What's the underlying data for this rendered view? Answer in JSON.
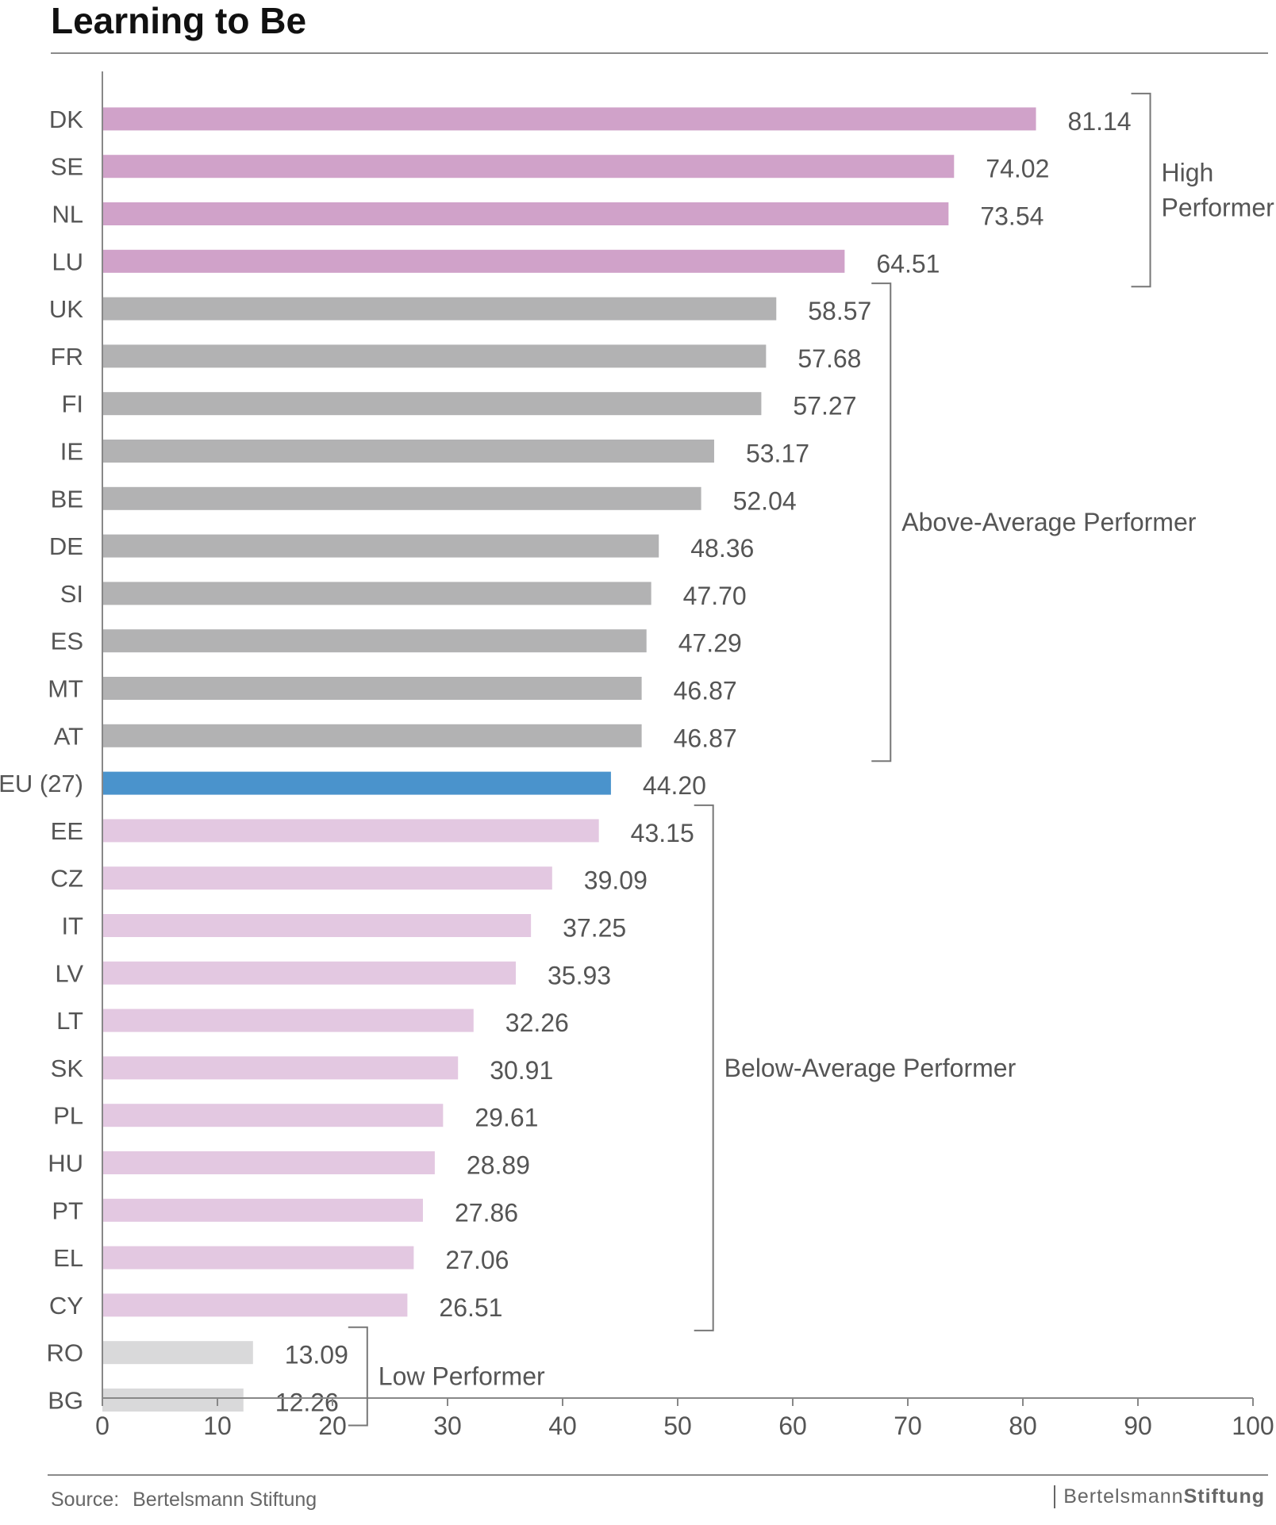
{
  "title": "Learning to Be",
  "source": {
    "label": "Source:",
    "text": "Bertelsmann Stiftung"
  },
  "brand": {
    "part1": "Bertelsmann",
    "part2": "Stiftung"
  },
  "colors": {
    "high": "#d0a2c9",
    "above": "#b2b2b3",
    "eu": "#4a93cc",
    "below": "#e3c8e1",
    "low": "#d9d9da"
  },
  "chart_data": {
    "type": "bar",
    "orientation": "horizontal",
    "categories": [
      "DK",
      "SE",
      "NL",
      "LU",
      "UK",
      "FR",
      "FI",
      "IE",
      "BE",
      "DE",
      "SI",
      "ES",
      "MT",
      "AT",
      "EU (27)",
      "EE",
      "CZ",
      "IT",
      "LV",
      "LT",
      "SK",
      "PL",
      "HU",
      "PT",
      "EL",
      "CY",
      "RO",
      "BG"
    ],
    "values": [
      81.14,
      74.02,
      73.54,
      64.51,
      58.57,
      57.68,
      57.27,
      53.17,
      52.04,
      48.36,
      47.7,
      47.29,
      46.87,
      46.87,
      44.2,
      43.15,
      39.09,
      37.25,
      35.93,
      32.26,
      30.91,
      29.61,
      28.89,
      27.86,
      27.06,
      26.51,
      13.09,
      12.26
    ],
    "value_labels": [
      "81.14",
      "74.02",
      "73.54",
      "64.51",
      "58.57",
      "57.68",
      "57.27",
      "53.17",
      "52.04",
      "48.36",
      "47.70",
      "47.29",
      "46.87",
      "46.87",
      "44.20",
      "43.15",
      "39.09",
      "37.25",
      "35.93",
      "32.26",
      "30.91",
      "29.61",
      "28.89",
      "27.86",
      "27.06",
      "26.51",
      "13.09",
      "12.26"
    ],
    "groups": [
      {
        "label_lines": [
          "High",
          "Performer"
        ],
        "first": 0,
        "last": 3,
        "color_key": "high"
      },
      {
        "label_lines": [
          "Above-Average Performer"
        ],
        "first": 4,
        "last": 13,
        "color_key": "above"
      },
      {
        "label_lines": [],
        "first": 14,
        "last": 14,
        "color_key": "eu"
      },
      {
        "label_lines": [
          "Below-Average Performer"
        ],
        "first": 15,
        "last": 25,
        "color_key": "below"
      },
      {
        "label_lines": [
          "Low Performer"
        ],
        "first": 26,
        "last": 27,
        "color_key": "low"
      }
    ],
    "xlim": [
      0,
      100
    ],
    "xticks": [
      0,
      10,
      20,
      30,
      40,
      50,
      60,
      70,
      80,
      90,
      100
    ],
    "grid": false
  }
}
